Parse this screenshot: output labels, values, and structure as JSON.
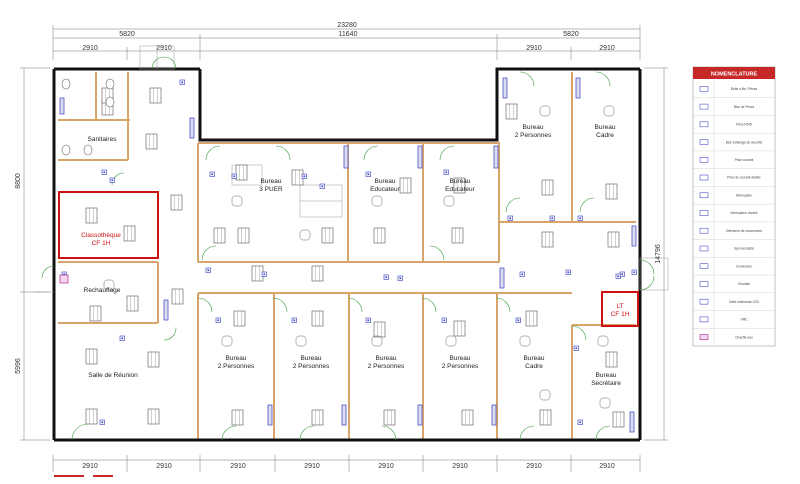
{
  "dimensions": {
    "total_width": "23280",
    "top_left_span": "5820",
    "top_mid_span": "11640",
    "top_right_span": "5820",
    "top_modules": [
      "2910",
      "2910",
      "2910",
      "2910"
    ],
    "bottom_modules": [
      "2910",
      "2910",
      "2910",
      "2910",
      "2910",
      "2910",
      "2910",
      "2910"
    ],
    "left_upper": "8800",
    "left_lower": "5996",
    "right_total": "14796"
  },
  "rooms": {
    "sanitaires": "Sanitaires",
    "classotheque_1": "Classothèque",
    "classotheque_2": "CF 1H",
    "rechauffage": "Rechauffage",
    "salle_reunion": "Salle de Réunion",
    "bureau_3puer_1": "Bureau",
    "bureau_3puer_2": "3 PUER",
    "bureau_educ_a_1": "Bureau",
    "bureau_educ_a_2": "Educateur",
    "bureau_educ_b_1": "Bureau",
    "bureau_educ_b_2": "Educateur",
    "bureau_2p_top_1": "Bureau",
    "bureau_2p_top_2": "2 Personnes",
    "bureau_cadre_top_1": "Bureau",
    "bureau_cadre_top_2": "Cadre",
    "lt_1": "LT",
    "lt_2": "CF 1H",
    "bottom_offices": [
      {
        "l1": "Bureau",
        "l2": "2 Personnes"
      },
      {
        "l1": "Bureau",
        "l2": "2 Personnes"
      },
      {
        "l1": "Bureau",
        "l2": "2 Personnes"
      },
      {
        "l1": "Bureau",
        "l2": "2 Personnes"
      },
      {
        "l1": "Bureau",
        "l2": "Cadre"
      },
      {
        "l1": "Bureau",
        "l2": "Secrétaire"
      }
    ]
  },
  "legend": {
    "title": "NOMENCLATURE",
    "items": [
      {
        "icon": "socket-box-icon",
        "label": "Boîte à fils / Prises"
      },
      {
        "icon": "floor-box-icon",
        "label": "Bloc de Prises"
      },
      {
        "icon": "double-socket-icon",
        "label": "Prise RJ45"
      },
      {
        "icon": "emergency-light-icon",
        "label": "Bloc éclairage de sécurité"
      },
      {
        "icon": "socket-icon",
        "label": "Prise courant"
      },
      {
        "icon": "socket-dedicated-icon",
        "label": "Prise de courant dédiée"
      },
      {
        "icon": "switch-icon",
        "label": "Interrupteur"
      },
      {
        "icon": "switch-double-icon",
        "label": "Interrupteur double"
      },
      {
        "icon": "detector-icon",
        "label": "Détecteur de mouvement"
      },
      {
        "icon": "spot-icon",
        "label": "Spot encastré"
      },
      {
        "icon": "convector-icon",
        "label": "Convecteur"
      },
      {
        "icon": "cable-tray-icon",
        "label": "Goulotte"
      },
      {
        "icon": "ceiling-light-icon",
        "label": "Dalle lumineuse LED"
      },
      {
        "icon": "vmc-icon",
        "label": "VMC"
      },
      {
        "icon": "water-heater-icon",
        "label": "Chauffe-eau"
      }
    ]
  },
  "colors": {
    "wall": "#111111",
    "partition": "#d9a46a",
    "red_frame": "#cc1111",
    "legend_header": "#c62828",
    "door": "#3a9a3a",
    "fixture_blue": "#4a55c8"
  }
}
